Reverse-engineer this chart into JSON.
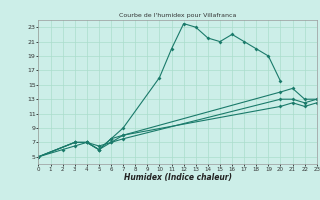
{
  "title": "Courbe de l'humidex pour Villafranca",
  "xlabel": "Humidex (Indice chaleur)",
  "bg_color": "#cceee8",
  "grid_color": "#aaddcc",
  "line_color": "#1a7a6a",
  "xlim": [
    0,
    23
  ],
  "ylim": [
    4,
    24
  ],
  "xticks": [
    0,
    1,
    2,
    3,
    4,
    5,
    6,
    7,
    8,
    9,
    10,
    11,
    12,
    13,
    14,
    15,
    16,
    17,
    18,
    19,
    20,
    21,
    22,
    23
  ],
  "yticks": [
    5,
    7,
    9,
    11,
    13,
    15,
    17,
    19,
    21,
    23
  ],
  "line1_x": [
    0,
    2,
    3,
    4,
    5,
    6,
    7,
    10,
    11,
    12,
    13,
    14,
    15,
    16,
    17,
    18,
    19,
    20
  ],
  "line1_y": [
    5,
    6,
    6.5,
    7,
    6,
    7.5,
    9,
    16,
    20,
    23.5,
    23,
    21.5,
    21,
    22,
    21,
    20,
    19,
    15.5
  ],
  "line2_x": [
    0,
    3,
    4,
    5,
    6,
    7,
    20,
    21,
    22,
    23
  ],
  "line2_y": [
    5,
    7,
    7,
    6,
    7.5,
    8,
    14,
    14.5,
    13,
    13
  ],
  "line3_x": [
    0,
    3,
    4,
    5,
    6,
    7,
    20,
    21,
    22,
    23
  ],
  "line3_y": [
    5,
    7,
    7,
    6.5,
    7,
    7.5,
    13,
    13,
    12.5,
    13
  ],
  "line4_x": [
    0,
    3,
    4,
    5,
    6,
    7,
    20,
    21,
    22,
    23
  ],
  "line4_y": [
    5,
    7,
    7,
    6,
    7,
    8,
    12,
    12.5,
    12,
    12.5
  ]
}
